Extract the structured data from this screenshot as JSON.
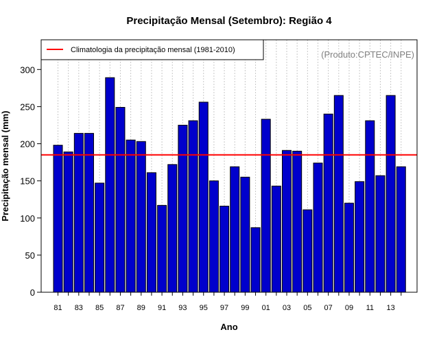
{
  "chart_data": {
    "type": "bar",
    "title": "Precipitação Mensal (Setembro): Região 4",
    "xlabel": "Ano",
    "ylabel": "Precipitação mensal (mm)",
    "ylim": [
      0,
      340
    ],
    "yticks": [
      0,
      50,
      100,
      150,
      200,
      250,
      300
    ],
    "grid": "vertical-dotted",
    "credit": "(Produto:CPTEC/INPE)",
    "categories": [
      "81",
      "82",
      "83",
      "84",
      "85",
      "86",
      "87",
      "88",
      "89",
      "90",
      "91",
      "92",
      "93",
      "94",
      "95",
      "96",
      "97",
      "98",
      "99",
      "00",
      "01",
      "02",
      "03",
      "04",
      "05",
      "06",
      "07",
      "08",
      "09",
      "10",
      "11",
      "12",
      "13",
      "14"
    ],
    "tick_labels": [
      "81",
      "83",
      "85",
      "87",
      "89",
      "91",
      "93",
      "95",
      "97",
      "99",
      "01",
      "03",
      "05",
      "07",
      "09",
      "11",
      "13"
    ],
    "values": [
      198,
      189,
      214,
      214,
      147,
      289,
      249,
      205,
      203,
      161,
      117,
      172,
      225,
      231,
      256,
      150,
      116,
      169,
      155,
      87,
      233,
      143,
      191,
      190,
      111,
      174,
      240,
      265,
      120,
      149,
      231,
      157,
      265,
      169
    ],
    "bar_color": "#0000cc",
    "climatology": {
      "value": 185,
      "label": "Climatologia da precipitação mensal (1981-2010)",
      "color": "#ff0000"
    },
    "legend": "top-left"
  }
}
